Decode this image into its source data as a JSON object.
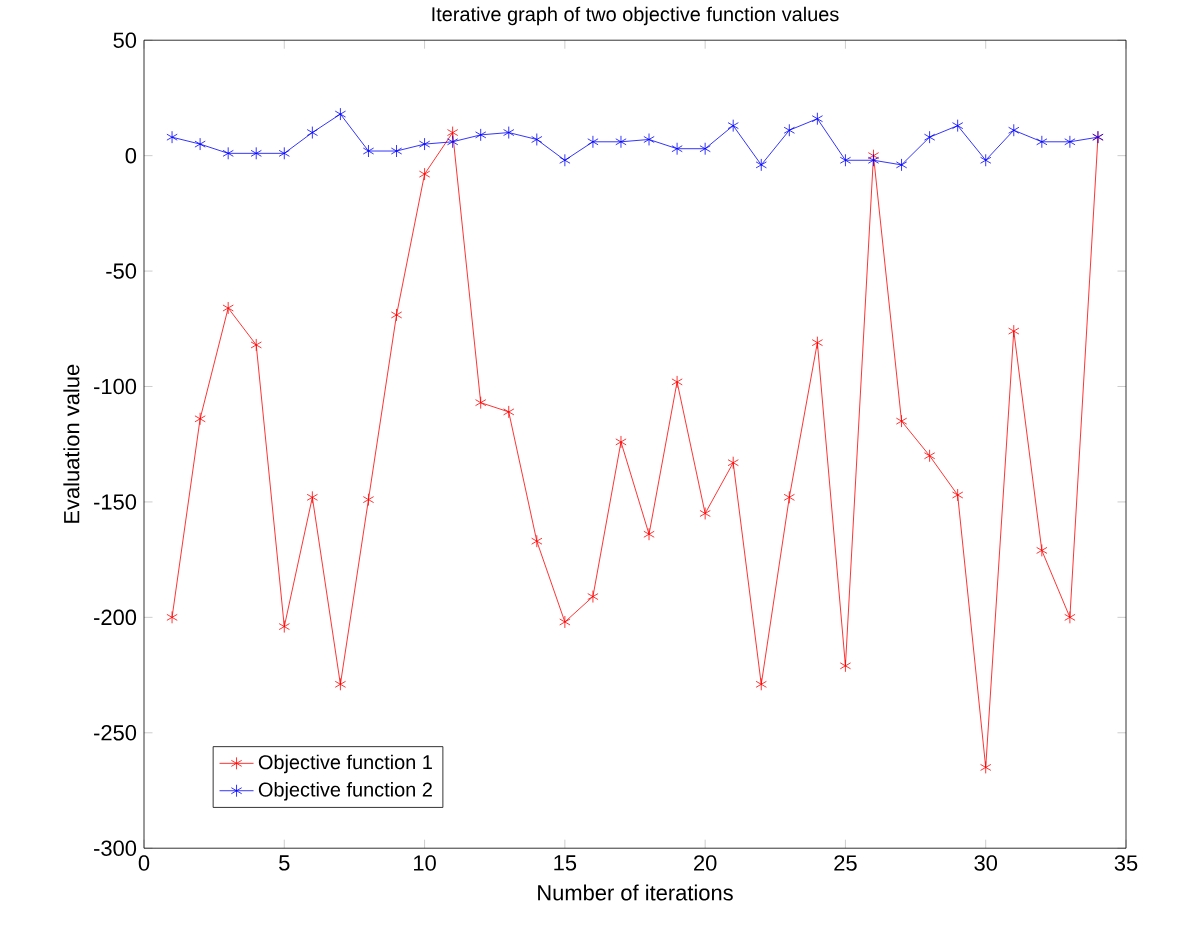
{
  "chart_data": {
    "type": "line",
    "title": "Iterative graph of two objective function values",
    "xlabel": "Number of iterations",
    "ylabel": "Evaluation value",
    "x": [
      1,
      2,
      3,
      4,
      5,
      6,
      7,
      8,
      9,
      10,
      11,
      12,
      13,
      14,
      15,
      16,
      17,
      18,
      19,
      20,
      21,
      22,
      23,
      24,
      25,
      26,
      27,
      28,
      29,
      30,
      31,
      32,
      33,
      34
    ],
    "series": [
      {
        "name": "Objective function 1",
        "color": "#ff0000",
        "values": [
          -200,
          -114,
          -66,
          -82,
          -204,
          -148,
          -229,
          -149,
          -69,
          -8,
          10,
          -107,
          -111,
          -167,
          -202,
          -191,
          -124,
          -164,
          -98,
          -155,
          -133,
          -229,
          -148,
          -81,
          -221,
          0,
          -115,
          -130,
          -147,
          -265,
          -76,
          -171,
          -200,
          8
        ]
      },
      {
        "name": "Objective function 2",
        "color": "#0000ff",
        "values": [
          8,
          5,
          1,
          1,
          1,
          10,
          18,
          2,
          2,
          5,
          6,
          9,
          10,
          7,
          -2,
          6,
          6,
          7,
          3,
          3,
          13,
          -4,
          11,
          16,
          -2,
          -2,
          -4,
          8,
          13,
          -2,
          11,
          6,
          6,
          8
        ]
      }
    ],
    "xlim": [
      0,
      35
    ],
    "xticks": [
      0,
      5,
      10,
      15,
      20,
      25,
      30,
      35
    ],
    "ylim": [
      -300,
      50
    ],
    "yticks": [
      -300,
      -250,
      -200,
      -150,
      -100,
      -50,
      0,
      50
    ],
    "grid": false,
    "legend": "bottom left",
    "marker": "cross",
    "line_style": "solid"
  }
}
